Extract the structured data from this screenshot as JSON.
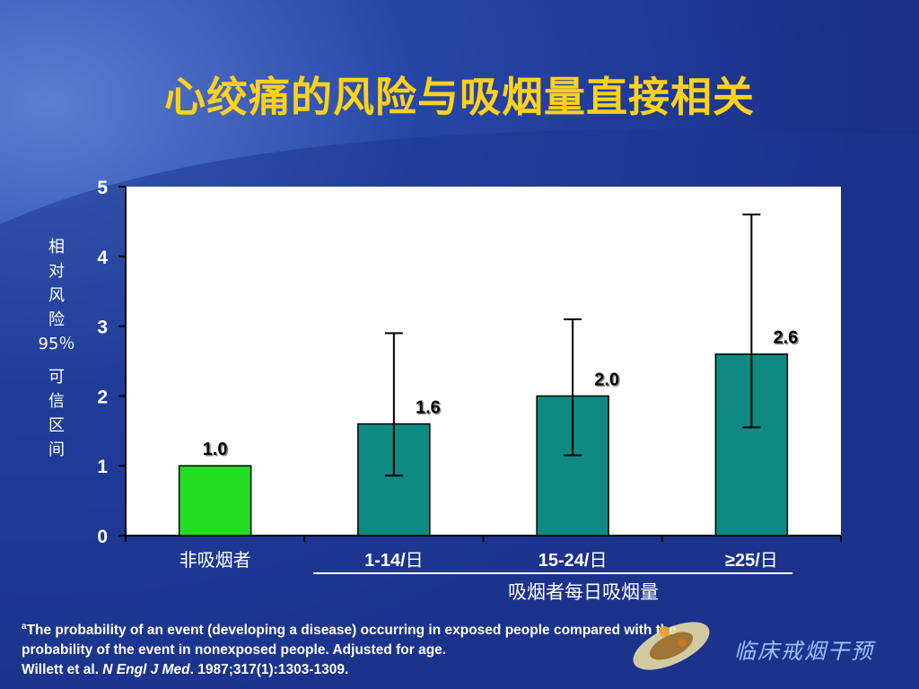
{
  "title": "心绞痛的风险与吸烟量直接相关",
  "ylabel_chars": [
    "相",
    "对",
    "风",
    "险",
    "95％",
    "可",
    "信",
    "区",
    "间"
  ],
  "xtitle": "吸烟者每日吸烟量",
  "footnote": {
    "sup": "a",
    "line1": "The probability of an event (developing a disease) occurring in exposed people compared with the",
    "line2": "probability of the event in nonexposed people. Adjusted for age.",
    "ref_prefix": "Willett et al. ",
    "ref_journal": "N Engl J Med",
    "ref_suffix": ". 1987;317(1):1303-1309."
  },
  "logo_text": "临床戒烟干预",
  "colors": {
    "background": "#1f3a93",
    "title": "#ffd21a",
    "bar_reference": "#22dd22",
    "bar_exposed": "#0f8a82"
  },
  "chart_data": {
    "type": "bar",
    "categories": [
      {
        "bold": "",
        "suffix": "非吸烟者"
      },
      {
        "bold": "1-14/",
        "suffix": "日"
      },
      {
        "bold": "15-24/",
        "suffix": "日"
      },
      {
        "bold": "≥25/",
        "suffix": "日"
      }
    ],
    "values": [
      1.0,
      1.6,
      2.0,
      2.6
    ],
    "value_labels": [
      "1.0",
      "1.6",
      "2.0",
      "2.6"
    ],
    "error_low": [
      null,
      0.86,
      1.15,
      1.55
    ],
    "error_high": [
      null,
      2.9,
      3.1,
      4.6
    ],
    "ylim": [
      0,
      5
    ],
    "yticks": [
      "0",
      "1",
      "2",
      "3",
      "4",
      "5"
    ],
    "grid": false,
    "legend": "none"
  }
}
